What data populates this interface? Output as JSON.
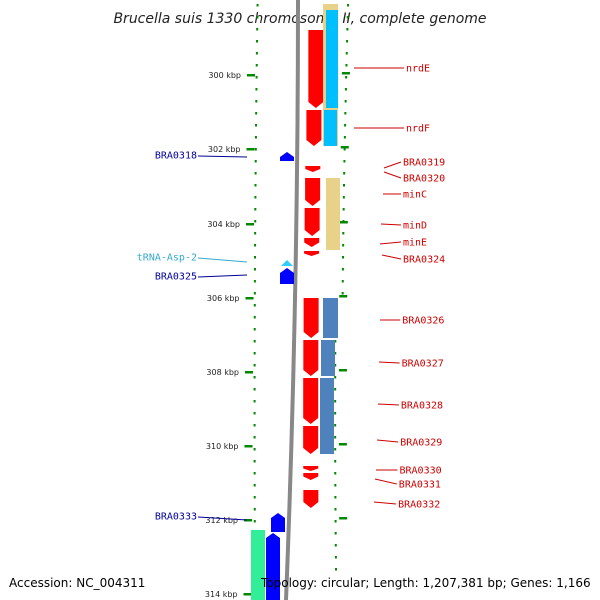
{
  "title": "Brucella suis 1330 chromosome II, complete genome",
  "footer": {
    "accession": "Accession: NC_004311",
    "info": "Topology: circular; Length: 1,207,381 bp; Genes: 1,166"
  },
  "colors": {
    "forward_gene": "#ff0000",
    "reverse_gene": "#0000ff",
    "trna": "#33ccff",
    "cog_sky": "#00bfff",
    "cog_khaki": "#e8d28a",
    "cog_steel": "#4f81bd",
    "cog_mint": "#33ee99",
    "ruler_dots": "#008800",
    "backbone": "#888888"
  },
  "ticks": [
    "300 kbp",
    "302 kbp",
    "304 kbp",
    "306 kbp",
    "308 kbp",
    "310 kbp",
    "312 kbp",
    "314 kbp"
  ],
  "right_labels": [
    "nrdE",
    "nrdF",
    "BRA0319",
    "BRA0320",
    "minC",
    "minD",
    "minE",
    "BRA0324",
    "BRA0326",
    "BRA0327",
    "BRA0328",
    "BRA0329",
    "BRA0330",
    "BRA0331",
    "BRA0332"
  ],
  "left_labels": [
    {
      "text": "BRA0318",
      "kind": "gene"
    },
    {
      "text": "tRNA-Asp-2",
      "kind": "trna"
    },
    {
      "text": "BRA0325",
      "kind": "gene"
    },
    {
      "text": "BRA0333",
      "kind": "gene"
    }
  ]
}
